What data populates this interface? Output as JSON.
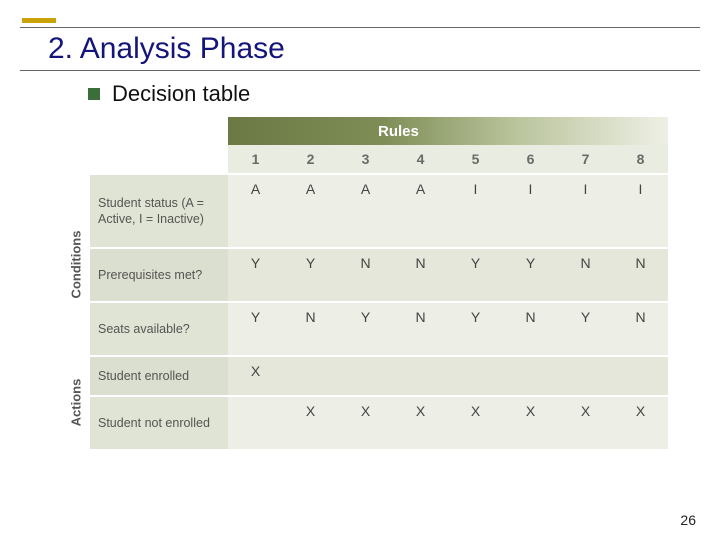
{
  "slide": {
    "title": "2. Analysis Phase",
    "subtitle": "Decision table",
    "page_number": "26"
  },
  "table": {
    "header_label": "Rules",
    "side_labels": {
      "conditions": "Conditions",
      "actions": "Actions"
    },
    "column_numbers": [
      "1",
      "2",
      "3",
      "4",
      "5",
      "6",
      "7",
      "8"
    ],
    "rows": [
      {
        "label": "Student status (A = Active, I = Inactive)",
        "cells": [
          "A",
          "A",
          "A",
          "A",
          "I",
          "I",
          "I",
          "I"
        ]
      },
      {
        "label": "Prerequisites met?",
        "cells": [
          "Y",
          "Y",
          "N",
          "N",
          "Y",
          "Y",
          "N",
          "N"
        ]
      },
      {
        "label": "Seats available?",
        "cells": [
          "Y",
          "N",
          "Y",
          "N",
          "Y",
          "N",
          "Y",
          "N"
        ]
      },
      {
        "label": "Student enrolled",
        "cells": [
          "X",
          "",
          "",
          "",
          "",
          "",
          "",
          ""
        ]
      },
      {
        "label": "Student not enrolled",
        "cells": [
          "",
          "X",
          "X",
          "X",
          "X",
          "X",
          "X",
          "X"
        ]
      }
    ]
  },
  "style": {
    "accent_gold": "#c9a309",
    "title_color": "#14157a",
    "bullet_color": "#3b6e3b",
    "header_gradient_from": "#6b7a44",
    "header_gradient_to": "#eef0e5",
    "row_label_bg": "#e0e4d4",
    "row_cells_bg": "#edefe6",
    "row_alt_label_bg": "#dbdfcf",
    "row_alt_cells_bg": "#e4e7da",
    "num_row_bg": "#e9ece0",
    "text_color": "#444"
  }
}
